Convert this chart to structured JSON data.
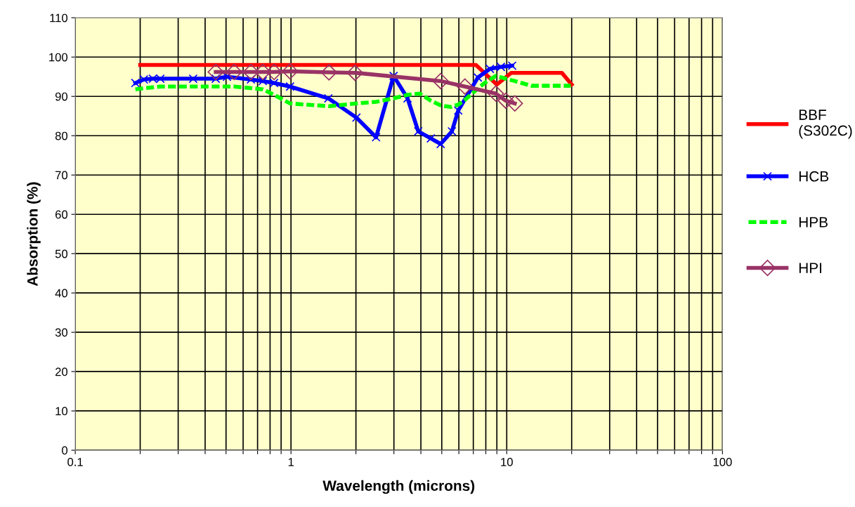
{
  "chart_data": {
    "type": "line",
    "xlabel": "Wavelength (microns)",
    "ylabel": "Absorption (%)",
    "log": "x",
    "grid": true,
    "legend": "right",
    "xlim": [
      0.1,
      100
    ],
    "ylim": [
      0,
      110
    ],
    "xticks": [
      0.1,
      {
        "value": 0.2,
        "label": null
      },
      {
        "value": 0.3,
        "label": null
      },
      {
        "value": 0.4,
        "label": null
      },
      {
        "value": 0.5,
        "label": null
      },
      {
        "value": 0.6,
        "label": null
      },
      {
        "value": 0.7,
        "label": null
      },
      {
        "value": 0.8,
        "label": null
      },
      {
        "value": 0.9,
        "label": null
      },
      1,
      {
        "value": 2,
        "label": null
      },
      {
        "value": 3,
        "label": null
      },
      {
        "value": 4,
        "label": null
      },
      {
        "value": 5,
        "label": null
      },
      {
        "value": 6,
        "label": null
      },
      {
        "value": 7,
        "label": null
      },
      {
        "value": 8,
        "label": null
      },
      {
        "value": 9,
        "label": null
      },
      10,
      {
        "value": 20,
        "label": null
      },
      {
        "value": 30,
        "label": null
      },
      {
        "value": 40,
        "label": null
      },
      {
        "value": 50,
        "label": null
      },
      {
        "value": 60,
        "label": null
      },
      {
        "value": 70,
        "label": null
      },
      {
        "value": 80,
        "label": null
      },
      {
        "value": 90,
        "label": null
      },
      100
    ],
    "yticks": [
      0,
      10,
      20,
      30,
      40,
      50,
      60,
      70,
      80,
      90,
      100,
      110
    ],
    "series": [
      {
        "name": "BBF\n(S302C)",
        "color": "#ff0000",
        "marker": "none",
        "line_style": "solid",
        "x": [
          0.2,
          7.2,
          9,
          10.5,
          18,
          20
        ],
        "values": [
          98,
          98,
          93,
          96,
          96,
          93
        ]
      },
      {
        "name": "HCB",
        "color": "#0000ff",
        "marker": "cross",
        "line_style": "solid",
        "x": [
          0.19,
          0.208,
          0.229,
          0.248,
          0.352,
          0.448,
          0.505,
          0.652,
          0.74,
          0.835,
          0.99,
          1.49,
          2.01,
          2.48,
          2.99,
          3.47,
          3.89,
          4.45,
          4.94,
          5.57,
          5.96,
          6.82,
          7.35,
          8.36,
          9.4,
          10.6
        ],
        "values": [
          93.4,
          94.3,
          94.5,
          94.5,
          94.5,
          94.5,
          95,
          94.3,
          93.9,
          93.4,
          92.5,
          89.5,
          84.6,
          79.6,
          95.2,
          89.5,
          81.1,
          79.3,
          77.9,
          81.1,
          86.4,
          91.8,
          94.8,
          97,
          97.5,
          97.8
        ]
      },
      {
        "name": "HPB",
        "color": "#00ff00",
        "marker": "none",
        "line_style": "dashed",
        "x": [
          0.19,
          0.208,
          0.229,
          0.248,
          0.352,
          0.448,
          0.545,
          0.652,
          0.74,
          0.835,
          0.99,
          1.5,
          2.01,
          2.48,
          2.99,
          3.47,
          3.96,
          4.45,
          4.94,
          5.5,
          5.96,
          6.4,
          6.9,
          7.9,
          8.9,
          9.9,
          10.9,
          13,
          14.7,
          16.7,
          19.8
        ],
        "values": [
          91.8,
          92.1,
          92.3,
          92.5,
          92.5,
          92.5,
          92.5,
          92.1,
          91.8,
          90.4,
          88.2,
          87.5,
          88.2,
          88.6,
          89.5,
          90.4,
          90.7,
          88.9,
          87.7,
          87.3,
          87.9,
          89.1,
          90.7,
          93.4,
          95.2,
          94.5,
          93.9,
          92.7,
          92.7,
          92.7,
          92.7
        ]
      },
      {
        "name": "HPI",
        "color": "#993366",
        "marker": "diamond",
        "line_style": "solid",
        "x": [
          0.448,
          0.545,
          0.652,
          0.74,
          0.835,
          0.99,
          1.5,
          1.98,
          4.94,
          6.4,
          8.9,
          9.9,
          10.9
        ],
        "values": [
          96.2,
          96.2,
          96.2,
          96.2,
          96.2,
          96.4,
          96.1,
          96,
          93.9,
          92.5,
          90.7,
          88.9,
          88.2
        ]
      }
    ]
  }
}
